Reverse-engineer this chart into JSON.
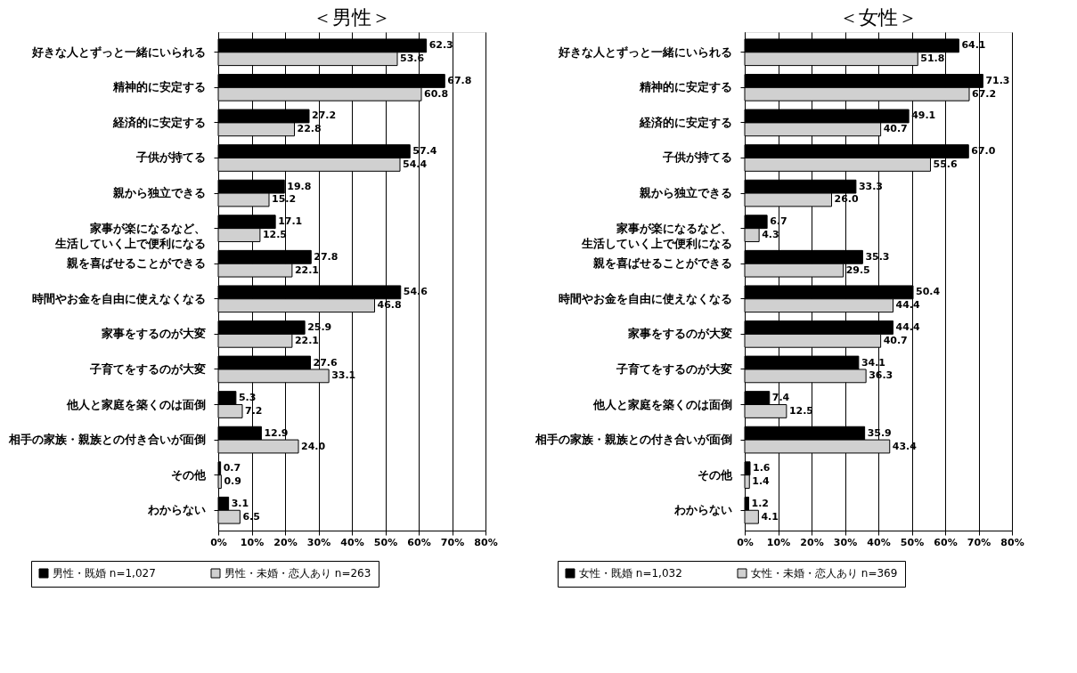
{
  "chart_data": [
    {
      "type": "bar",
      "orientation": "horizontal",
      "title": "＜男性＞",
      "categories": [
        "好きな人とずっと一緒にいられる",
        "精神的に安定する",
        "経済的に安定する",
        "子供が持てる",
        "親から独立できる",
        "家事が楽になるなど、生活していく上で便利になる",
        "親を喜ばせることができる",
        "時間やお金を自由に使えなくなる",
        "家事をするのが大変",
        "子育てをするのが大変",
        "他人と家庭を築くのは面倒",
        "相手の家族・親族との付き合いが面倒",
        "その他",
        "わからない"
      ],
      "series": [
        {
          "name": "男性・既婚 n=1,027",
          "color": "#000000",
          "values": [
            62.3,
            67.8,
            27.2,
            57.4,
            19.8,
            17.1,
            27.8,
            54.6,
            25.9,
            27.6,
            5.3,
            12.9,
            0.7,
            3.1
          ],
          "value_labels": [
            "62.3",
            "67.8",
            "27.2",
            "57.4",
            "19.8",
            "17.1",
            "27.8",
            "54.6",
            "25.9",
            "27.6",
            "5.3",
            "12.9",
            "0.7",
            "3.1"
          ]
        },
        {
          "name": "男性・未婚・恋人あり n=263",
          "color": "#d0d0d0",
          "values": [
            53.6,
            60.8,
            22.8,
            54.4,
            15.2,
            12.5,
            22.1,
            46.8,
            22.1,
            33.1,
            7.2,
            24.0,
            0.9,
            6.5
          ],
          "value_labels": [
            "53.6",
            "60.8",
            "22.8",
            "54.4",
            "15.2",
            "12.5",
            "22.1",
            "46.8",
            "22.1",
            "33.1",
            "7.2",
            "24.0",
            "0.9",
            "6.5"
          ]
        }
      ],
      "xlim": [
        0,
        80
      ],
      "xticks": [
        {
          "value": 0,
          "label": "0%"
        },
        {
          "value": 10,
          "label": "10%"
        },
        {
          "value": 20,
          "label": "20%"
        },
        {
          "value": 30,
          "label": "30%"
        },
        {
          "value": 40,
          "label": "40%"
        },
        {
          "value": 50,
          "label": "50%"
        },
        {
          "value": 60,
          "label": "60%"
        },
        {
          "value": 70,
          "label": "70%"
        },
        {
          "value": 80,
          "label": "80%"
        }
      ],
      "grid": "x",
      "legend": "bottom"
    },
    {
      "type": "bar",
      "orientation": "horizontal",
      "title": "＜女性＞",
      "categories": [
        "好きな人とずっと一緒にいられる",
        "精神的に安定する",
        "経済的に安定する",
        "子供が持てる",
        "親から独立できる",
        "家事が楽になるなど、生活していく上で便利になる",
        "親を喜ばせることができる",
        "時間やお金を自由に使えなくなる",
        "家事をするのが大変",
        "子育てをするのが大変",
        "他人と家庭を築くのは面倒",
        "相手の家族・親族との付き合いが面倒",
        "その他",
        "わからない"
      ],
      "series": [
        {
          "name": "女性・既婚 n=1,032",
          "color": "#000000",
          "values": [
            64.1,
            71.3,
            49.1,
            67.0,
            33.3,
            6.7,
            35.3,
            50.4,
            44.4,
            34.1,
            7.4,
            35.9,
            1.6,
            1.2
          ],
          "value_labels": [
            "64.1",
            "71.3",
            "49.1",
            "67.0",
            "33.3",
            "6.7",
            "35.3",
            "50.4",
            "44.4",
            "34.1",
            "7.4",
            "35.9",
            "1.6",
            "1.2"
          ]
        },
        {
          "name": "女性・未婚・恋人あり n=369",
          "color": "#d0d0d0",
          "values": [
            51.8,
            67.2,
            40.7,
            55.6,
            26.0,
            4.3,
            29.5,
            44.4,
            40.7,
            36.3,
            12.5,
            43.4,
            1.4,
            4.1
          ],
          "value_labels": [
            "51.8",
            "67.2",
            "40.7",
            "55.6",
            "26.0",
            "4.3",
            "29.5",
            "44.4",
            "40.7",
            "36.3",
            "12.5",
            "43.4",
            "1.4",
            "4.1"
          ]
        }
      ],
      "xlim": [
        0,
        80
      ],
      "xticks": [
        {
          "value": 0,
          "label": "0%"
        },
        {
          "value": 10,
          "label": "10%"
        },
        {
          "value": 20,
          "label": "20%"
        },
        {
          "value": 30,
          "label": "30%"
        },
        {
          "value": 40,
          "label": "40%"
        },
        {
          "value": 50,
          "label": "50%"
        },
        {
          "value": 60,
          "label": "60%"
        },
        {
          "value": 70,
          "label": "70%"
        },
        {
          "value": 80,
          "label": "80%"
        }
      ],
      "grid": "x",
      "legend": "bottom"
    }
  ]
}
